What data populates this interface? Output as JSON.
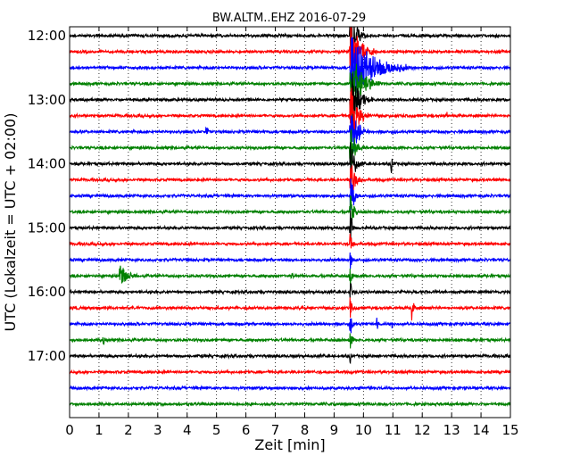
{
  "chart_data": {
    "type": "line",
    "title": "BW.ALTM..EHZ 2016-07-29",
    "xlabel": "Zeit  [min]",
    "ylabel": "UTC (Lokalzeit = UTC + 02:00)",
    "xlim": [
      0,
      15
    ],
    "x_ticks": [
      "0",
      "1",
      "2",
      "3",
      "4",
      "5",
      "6",
      "7",
      "8",
      "9",
      "10",
      "11",
      "12",
      "13",
      "14",
      "15"
    ],
    "y_tick_labels": [
      "12:00",
      "13:00",
      "14:00",
      "15:00",
      "16:00",
      "17:00"
    ],
    "grid": "vertical dotted at each minute",
    "trace_interval_minutes": 15,
    "trace_colors": [
      "#000000",
      "#ff0000",
      "#0000ff",
      "#008000"
    ],
    "traces": [
      {
        "start": "12:00",
        "color": "#000000"
      },
      {
        "start": "12:15",
        "color": "#ff0000"
      },
      {
        "start": "12:30",
        "color": "#0000ff"
      },
      {
        "start": "12:45",
        "color": "#008000"
      },
      {
        "start": "13:00",
        "color": "#000000"
      },
      {
        "start": "13:15",
        "color": "#ff0000"
      },
      {
        "start": "13:30",
        "color": "#0000ff"
      },
      {
        "start": "13:45",
        "color": "#008000"
      },
      {
        "start": "14:00",
        "color": "#000000"
      },
      {
        "start": "14:15",
        "color": "#ff0000"
      },
      {
        "start": "14:30",
        "color": "#0000ff"
      },
      {
        "start": "14:45",
        "color": "#008000"
      },
      {
        "start": "15:00",
        "color": "#000000"
      },
      {
        "start": "15:15",
        "color": "#ff0000"
      },
      {
        "start": "15:30",
        "color": "#0000ff"
      },
      {
        "start": "15:45",
        "color": "#008000"
      },
      {
        "start": "16:00",
        "color": "#000000"
      },
      {
        "start": "16:15",
        "color": "#ff0000"
      },
      {
        "start": "16:30",
        "color": "#0000ff"
      },
      {
        "start": "16:45",
        "color": "#008000"
      },
      {
        "start": "17:00",
        "color": "#000000"
      },
      {
        "start": "17:15",
        "color": "#ff0000"
      },
      {
        "start": "17:30",
        "color": "#0000ff"
      },
      {
        "start": "17:45",
        "color": "#008000"
      }
    ],
    "events": [
      {
        "trace": 0,
        "t": 9.55,
        "amp": 2.5,
        "dur": 0.35,
        "big": true
      },
      {
        "trace": 1,
        "t": 9.55,
        "amp": 2.5,
        "dur": 0.6,
        "big": true
      },
      {
        "trace": 2,
        "t": 9.55,
        "amp": 2.5,
        "dur": 1.4,
        "big": true
      },
      {
        "trace": 3,
        "t": 9.55,
        "amp": 2.5,
        "dur": 0.7,
        "big": true
      },
      {
        "trace": 4,
        "t": 9.55,
        "amp": 2.5,
        "dur": 0.5,
        "big": true
      },
      {
        "trace": 5,
        "t": 9.55,
        "amp": 2.5,
        "dur": 0.45,
        "big": true
      },
      {
        "trace": 6,
        "t": 9.55,
        "amp": 2.5,
        "dur": 0.4,
        "big": true
      },
      {
        "trace": 7,
        "t": 9.55,
        "amp": 2.0,
        "dur": 0.3,
        "big": true
      },
      {
        "trace": 8,
        "t": 9.55,
        "amp": 1.8,
        "dur": 0.3,
        "big": true
      },
      {
        "trace": 9,
        "t": 9.55,
        "amp": 1.6,
        "dur": 0.3,
        "big": true
      },
      {
        "trace": 10,
        "t": 9.55,
        "amp": 1.5,
        "dur": 0.25,
        "big": true
      },
      {
        "trace": 11,
        "t": 9.55,
        "amp": 1.4,
        "dur": 0.2,
        "big": true
      },
      {
        "trace": 12,
        "t": 9.55,
        "amp": 1.3,
        "dur": 0.15,
        "big": true
      },
      {
        "trace": 13,
        "t": 9.55,
        "amp": 1.2,
        "dur": 0.1,
        "big": true
      },
      {
        "trace": 14,
        "t": 9.55,
        "amp": 1.1,
        "dur": 0.1,
        "big": true
      },
      {
        "trace": 15,
        "t": 9.55,
        "amp": 1.0,
        "dur": 0.1,
        "big": true
      },
      {
        "trace": 16,
        "t": 9.55,
        "amp": 1.0,
        "dur": 0.1,
        "big": true
      },
      {
        "trace": 17,
        "t": 9.55,
        "amp": 1.0,
        "dur": 0.1,
        "big": true
      },
      {
        "trace": 18,
        "t": 9.55,
        "amp": 1.0,
        "dur": 0.1,
        "big": true
      },
      {
        "trace": 19,
        "t": 9.55,
        "amp": 0.9,
        "dur": 0.1,
        "big": true
      },
      {
        "trace": 20,
        "t": 9.55,
        "amp": 0.5,
        "dur": 0.05,
        "big": true
      },
      {
        "trace": 5,
        "t": 12.85,
        "amp": 0.5,
        "dur": 0.1
      },
      {
        "trace": 6,
        "t": 4.65,
        "amp": 0.45,
        "dur": 0.08
      },
      {
        "trace": 8,
        "t": 10.95,
        "amp": 0.6,
        "dur": 0.12
      },
      {
        "trace": 15,
        "t": 1.7,
        "amp": 1.0,
        "dur": 0.5
      },
      {
        "trace": 15,
        "t": 7.55,
        "amp": 0.35,
        "dur": 0.08
      },
      {
        "trace": 17,
        "t": 11.65,
        "amp": 1.4,
        "dur": 0.1
      },
      {
        "trace": 18,
        "t": 10.45,
        "amp": 0.5,
        "dur": 0.08
      },
      {
        "trace": 18,
        "t": 10.95,
        "amp": 0.4,
        "dur": 0.08
      },
      {
        "trace": 19,
        "t": 1.15,
        "amp": 0.4,
        "dur": 0.08
      },
      {
        "trace": 14,
        "t": 4.0,
        "amp": 0.2,
        "dur": 0.05
      }
    ]
  }
}
